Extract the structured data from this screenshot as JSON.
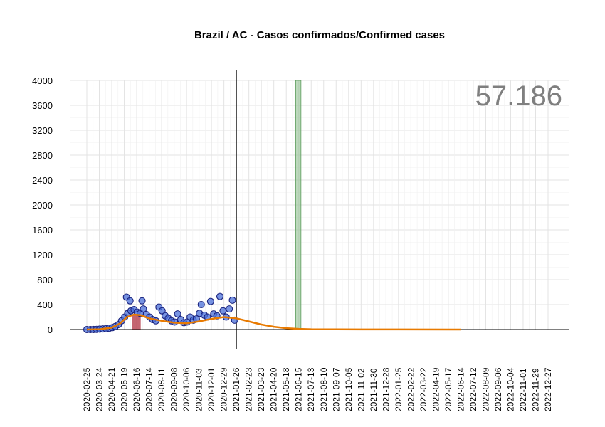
{
  "chart_data": {
    "type": "line",
    "title": "Brazil / AC - Casos confirmados/Confirmed cases",
    "total_label": "57.186",
    "ylim": [
      0,
      4000
    ],
    "yticks": [
      0,
      400,
      800,
      1200,
      1600,
      2000,
      2400,
      2800,
      3200,
      3600,
      4000
    ],
    "xlim": [
      "2020-02-25",
      "2022-12-27"
    ],
    "xticks": [
      "2020-02-25",
      "2020-03-24",
      "2020-04-21",
      "2020-05-19",
      "2020-06-16",
      "2020-07-14",
      "2020-08-11",
      "2020-09-08",
      "2020-10-06",
      "2020-11-03",
      "2020-12-01",
      "2020-12-29",
      "2021-01-26",
      "2021-02-23",
      "2021-03-23",
      "2021-04-20",
      "2021-05-18",
      "2021-06-15",
      "2021-07-13",
      "2021-08-10",
      "2021-09-07",
      "2021-10-05",
      "2021-11-02",
      "2021-11-30",
      "2021-12-28",
      "2022-01-25",
      "2022-02-22",
      "2022-03-22",
      "2022-04-19",
      "2022-05-17",
      "2022-06-14",
      "2022-07-12",
      "2022-08-09",
      "2022-09-06",
      "2022-10-04",
      "2022-11-01",
      "2022-11-29",
      "2022-12-27"
    ],
    "vertical_line_date": "2021-01-26",
    "highlight_band": {
      "start": "2021-06-08",
      "end": "2021-06-20",
      "color": "#8fbf8f"
    },
    "red_band": {
      "start": "2020-06-05",
      "end": "2020-06-25",
      "color": "#b03040"
    },
    "series": [
      {
        "kind": "observed",
        "marker_color": "#4a6fd8",
        "points": [
          [
            "2020-02-25",
            0
          ],
          [
            "2020-03-04",
            0
          ],
          [
            "2020-03-11",
            1
          ],
          [
            "2020-03-18",
            3
          ],
          [
            "2020-03-25",
            6
          ],
          [
            "2020-04-01",
            10
          ],
          [
            "2020-04-08",
            15
          ],
          [
            "2020-04-15",
            20
          ],
          [
            "2020-04-22",
            30
          ],
          [
            "2020-04-29",
            50
          ],
          [
            "2020-05-06",
            80
          ],
          [
            "2020-05-13",
            140
          ],
          [
            "2020-05-20",
            200
          ],
          [
            "2020-05-27",
            260
          ],
          [
            "2020-05-24",
            520
          ],
          [
            "2020-06-01",
            460
          ],
          [
            "2020-06-03",
            300
          ],
          [
            "2020-06-10",
            320
          ],
          [
            "2020-06-17",
            280
          ],
          [
            "2020-06-24",
            260
          ],
          [
            "2020-06-28",
            460
          ],
          [
            "2020-07-01",
            330
          ],
          [
            "2020-07-08",
            240
          ],
          [
            "2020-07-15",
            200
          ],
          [
            "2020-07-22",
            160
          ],
          [
            "2020-07-29",
            140
          ],
          [
            "2020-08-05",
            360
          ],
          [
            "2020-08-12",
            300
          ],
          [
            "2020-08-19",
            220
          ],
          [
            "2020-08-26",
            180
          ],
          [
            "2020-09-02",
            140
          ],
          [
            "2020-09-09",
            120
          ],
          [
            "2020-09-16",
            250
          ],
          [
            "2020-09-23",
            160
          ],
          [
            "2020-09-30",
            110
          ],
          [
            "2020-10-07",
            120
          ],
          [
            "2020-10-14",
            200
          ],
          [
            "2020-10-21",
            150
          ],
          [
            "2020-10-28",
            170
          ],
          [
            "2020-11-04",
            260
          ],
          [
            "2020-11-08",
            400
          ],
          [
            "2020-11-15",
            230
          ],
          [
            "2020-11-22",
            200
          ],
          [
            "2020-11-29",
            450
          ],
          [
            "2020-12-06",
            250
          ],
          [
            "2020-12-13",
            220
          ],
          [
            "2020-12-20",
            530
          ],
          [
            "2020-12-27",
            300
          ],
          [
            "2021-01-03",
            200
          ],
          [
            "2021-01-10",
            330
          ],
          [
            "2021-01-17",
            470
          ],
          [
            "2021-01-22",
            150
          ]
        ]
      },
      {
        "kind": "fitted",
        "color": "#e87a00",
        "points": [
          [
            "2020-02-25",
            0
          ],
          [
            "2020-03-25",
            5
          ],
          [
            "2020-04-21",
            30
          ],
          [
            "2020-05-10",
            100
          ],
          [
            "2020-05-25",
            200
          ],
          [
            "2020-06-10",
            240
          ],
          [
            "2020-06-25",
            230
          ],
          [
            "2020-07-14",
            180
          ],
          [
            "2020-08-11",
            140
          ],
          [
            "2020-09-08",
            110
          ],
          [
            "2020-10-06",
            100
          ],
          [
            "2020-11-03",
            130
          ],
          [
            "2020-12-01",
            170
          ],
          [
            "2020-12-29",
            200
          ],
          [
            "2021-01-26",
            180
          ],
          [
            "2021-02-23",
            130
          ],
          [
            "2021-03-23",
            80
          ],
          [
            "2021-04-20",
            45
          ],
          [
            "2021-05-18",
            22
          ],
          [
            "2021-06-15",
            10
          ],
          [
            "2021-07-13",
            5
          ],
          [
            "2021-09-07",
            2
          ],
          [
            "2022-01-25",
            1
          ],
          [
            "2022-06-14",
            0
          ]
        ]
      }
    ]
  }
}
